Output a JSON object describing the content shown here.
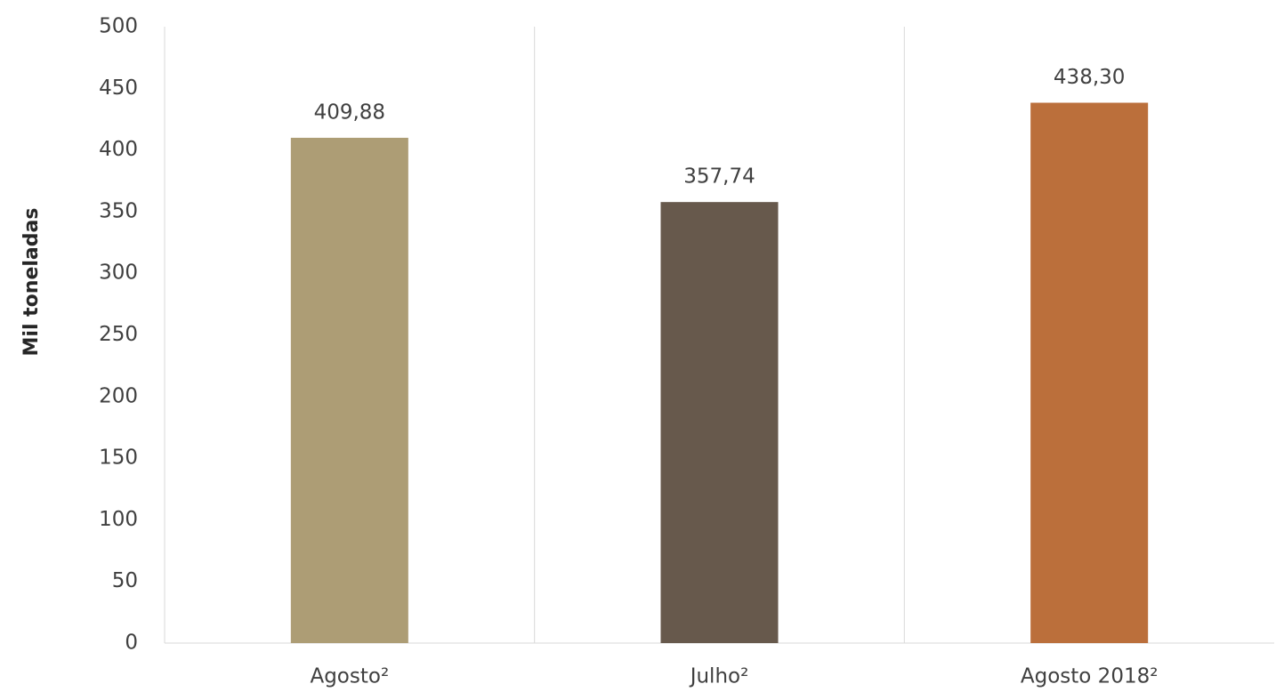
{
  "chart_data": {
    "type": "bar",
    "y_label": "Mil toneladas",
    "categories": [
      "Agosto²",
      "Julho²",
      "Agosto 2018²"
    ],
    "values": [
      409.88,
      357.74,
      438.3
    ],
    "value_labels": [
      "409,88",
      "357,74",
      "438,30"
    ],
    "colors": [
      "#ad9d75",
      "#67594c",
      "#bb6f3b"
    ],
    "ylim": [
      0,
      500
    ],
    "yticks": [
      0,
      50,
      100,
      150,
      200,
      250,
      300,
      350,
      400,
      450,
      500
    ]
  }
}
